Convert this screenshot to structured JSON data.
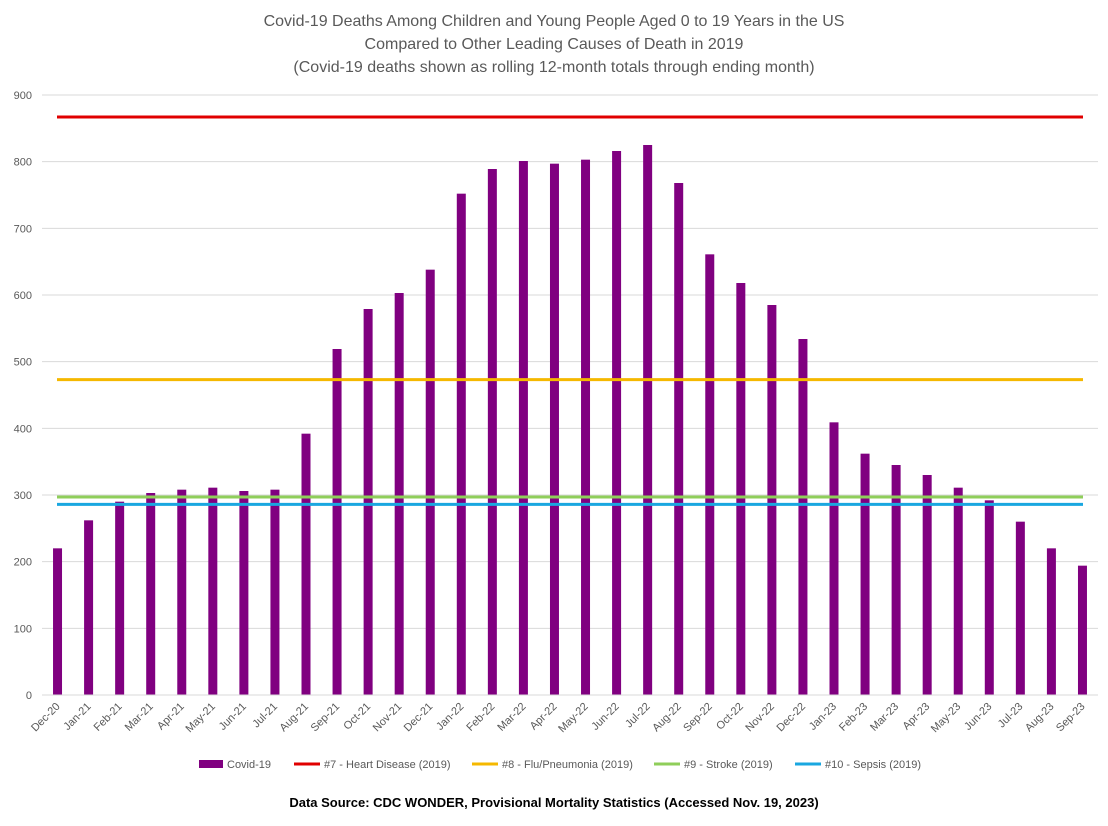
{
  "chart_data": {
    "type": "bar",
    "title_lines": [
      "Covid-19 Deaths Among Children and Young People Aged 0 to 19 Years in the US",
      "Compared to Other Leading Causes of Death in 2019",
      "(Covid-19 deaths shown as rolling 12-month totals through ending month)"
    ],
    "categories": [
      "Dec-20",
      "Jan-21",
      "Feb-21",
      "Mar-21",
      "Apr-21",
      "May-21",
      "Jun-21",
      "Jul-21",
      "Aug-21",
      "Sep-21",
      "Oct-21",
      "Nov-21",
      "Dec-21",
      "Jan-22",
      "Feb-22",
      "Mar-22",
      "Apr-22",
      "May-22",
      "Jun-22",
      "Jul-22",
      "Aug-22",
      "Sep-22",
      "Oct-22",
      "Nov-22",
      "Dec-22",
      "Jan-23",
      "Feb-23",
      "Mar-23",
      "Apr-23",
      "May-23",
      "Jun-23",
      "Jul-23",
      "Aug-23",
      "Sep-23"
    ],
    "series": [
      {
        "name": "Covid-19",
        "color": "#800080",
        "values": [
          220,
          262,
          290,
          303,
          308,
          311,
          306,
          308,
          392,
          519,
          579,
          603,
          638,
          752,
          789,
          801,
          797,
          803,
          816,
          825,
          768,
          661,
          618,
          585,
          534,
          409,
          362,
          345,
          330,
          311,
          292,
          260,
          220,
          194
        ]
      }
    ],
    "reference_lines": [
      {
        "name": "#7 - Heart Disease (2019)",
        "value": 867,
        "color": "#e00000"
      },
      {
        "name": "#8 - Flu/Pneumonia (2019)",
        "value": 473,
        "color": "#f5b800"
      },
      {
        "name": "#9 - Stroke (2019)",
        "value": 297,
        "color": "#8fce5a"
      },
      {
        "name": "#10 - Sepsis (2019)",
        "value": 286,
        "color": "#1aa7e0"
      }
    ],
    "ylim": [
      0,
      900
    ],
    "yticks": [
      "0",
      "100",
      "200",
      "300",
      "400",
      "500",
      "600",
      "700",
      "800",
      "900"
    ],
    "grid": true,
    "legend_position": "bottom"
  },
  "source_text": "Data Source: CDC WONDER, Provisional Mortality Statistics (Accessed Nov. 19, 2023)"
}
